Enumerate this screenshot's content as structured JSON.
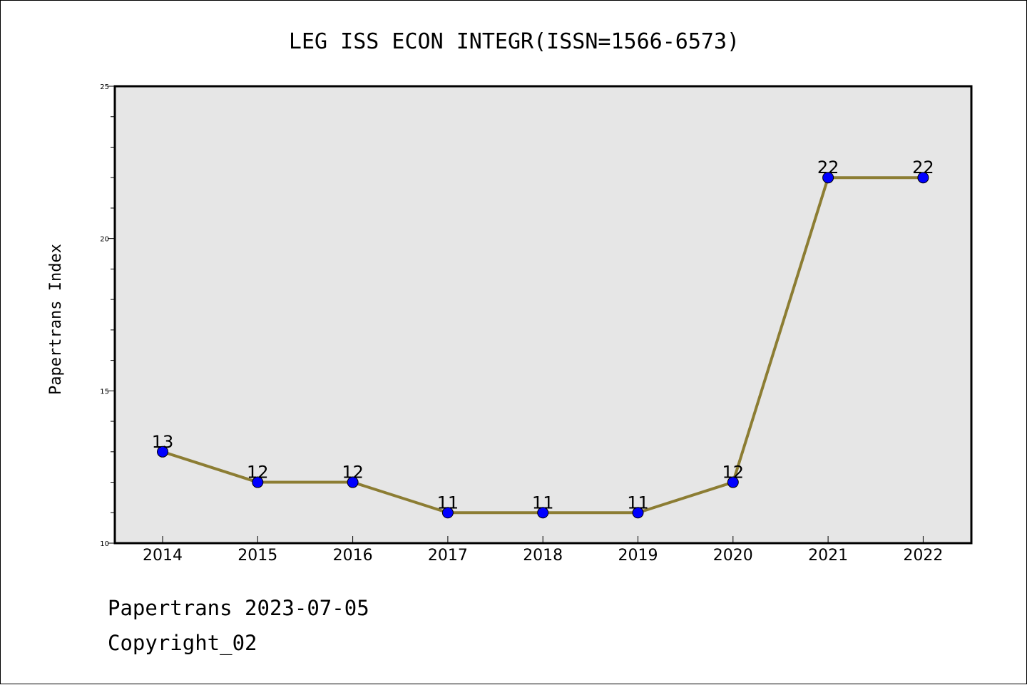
{
  "chart_data": {
    "type": "line",
    "title": "LEG ISS ECON INTEGR(ISSN=1566-6573)",
    "xlabel": "",
    "ylabel": "Papertrans Index",
    "categories": [
      "2014",
      "2015",
      "2016",
      "2017",
      "2018",
      "2019",
      "2020",
      "2021",
      "2022"
    ],
    "series": [
      {
        "values": [
          13,
          12,
          12,
          11,
          11,
          11,
          12,
          22,
          22
        ]
      }
    ],
    "ylim": [
      10,
      25
    ],
    "yticks": [
      "10",
      "15",
      "20",
      "25"
    ],
    "data_labels": true,
    "grid": false,
    "legend": "none",
    "colors": {
      "line": "#8c7d33",
      "marker": "#0000ff",
      "plot_background": "#e6e6e6",
      "axes": "#000000"
    }
  },
  "footer": {
    "line1": "Papertrans 2023-07-05",
    "line2": "Copyright_02"
  }
}
